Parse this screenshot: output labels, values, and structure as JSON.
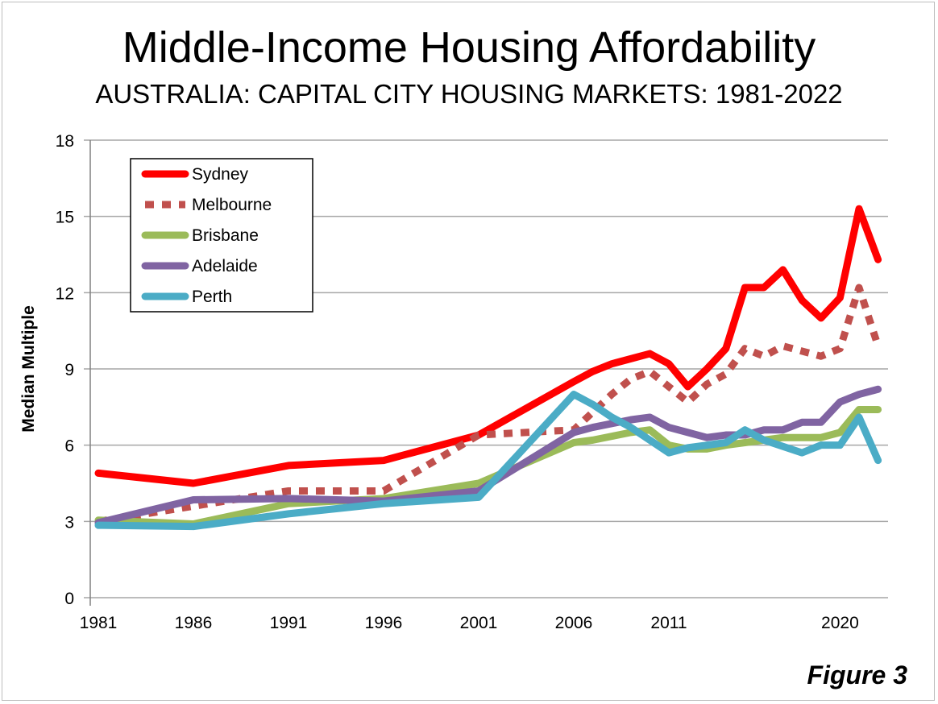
{
  "chart_data": {
    "type": "line",
    "title": "Middle-Income Housing Affordability",
    "subtitle": "AUSTRALIA: CAPITAL CITY HOUSING MARKETS: 1981-2022",
    "xlabel": "",
    "ylabel": "Median Multiple",
    "ylim": [
      0,
      18
    ],
    "yticks": [
      0,
      3,
      6,
      9,
      12,
      15,
      18
    ],
    "xticks": [
      1981,
      1986,
      1991,
      1996,
      2001,
      2006,
      2011,
      2020
    ],
    "grid": true,
    "legend_position": "top-left",
    "x": [
      1981,
      1986,
      1991,
      1996,
      2001,
      2006,
      2007,
      2008,
      2009,
      2010,
      2011,
      2012,
      2013,
      2014,
      2015,
      2016,
      2017,
      2018,
      2019,
      2020,
      2021,
      2022
    ],
    "series": [
      {
        "name": "Sydney",
        "color": "#ff0000",
        "dash": "solid",
        "values": [
          4.9,
          4.5,
          5.2,
          5.4,
          6.4,
          8.5,
          8.9,
          9.2,
          9.4,
          9.6,
          9.2,
          8.3,
          9.0,
          9.8,
          12.2,
          12.2,
          12.9,
          11.7,
          11.0,
          11.8,
          15.3,
          13.3
        ]
      },
      {
        "name": "Melbourne",
        "color": "#c0504d",
        "dash": "dotted",
        "values": [
          3.0,
          3.6,
          4.2,
          4.2,
          6.4,
          6.6,
          7.3,
          8.0,
          8.6,
          8.9,
          8.3,
          7.7,
          8.4,
          8.8,
          9.8,
          9.5,
          9.9,
          9.7,
          9.5,
          9.8,
          12.2,
          9.9
        ]
      },
      {
        "name": "Brisbane",
        "color": "#9bbb59",
        "dash": "solid",
        "values": [
          3.05,
          2.9,
          3.7,
          3.9,
          4.5,
          6.1,
          6.2,
          6.35,
          6.5,
          6.6,
          6.0,
          5.85,
          5.85,
          6.0,
          6.1,
          6.2,
          6.3,
          6.3,
          6.3,
          6.5,
          7.4,
          7.4
        ]
      },
      {
        "name": "Adelaide",
        "color": "#8064a2",
        "dash": "solid",
        "values": [
          2.95,
          3.85,
          3.9,
          3.8,
          4.2,
          6.5,
          6.7,
          6.85,
          7.0,
          7.1,
          6.7,
          6.5,
          6.3,
          6.4,
          6.4,
          6.6,
          6.6,
          6.9,
          6.9,
          7.7,
          8.0,
          8.2
        ]
      },
      {
        "name": "Perth",
        "color": "#4bacc6",
        "dash": "solid",
        "values": [
          2.85,
          2.8,
          3.3,
          3.7,
          3.95,
          8.0,
          7.6,
          7.1,
          6.7,
          6.2,
          5.7,
          5.9,
          6.0,
          6.1,
          6.6,
          6.2,
          5.95,
          5.7,
          6.0,
          6.0,
          7.1,
          5.4
        ]
      }
    ]
  },
  "figure_label": "Figure 3"
}
